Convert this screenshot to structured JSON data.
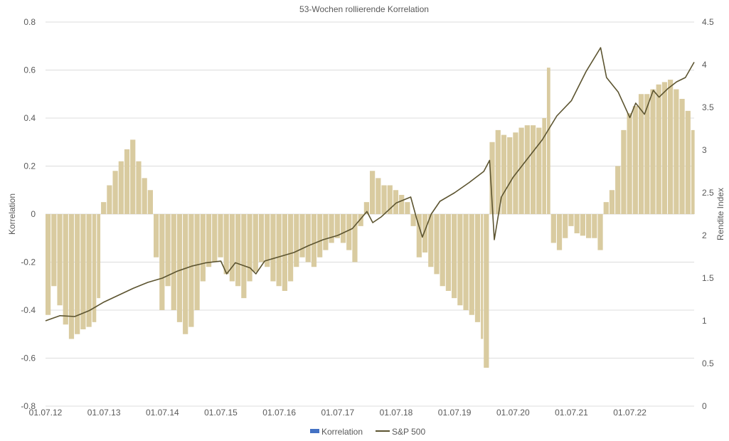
{
  "chart_data": {
    "type": "bar+line",
    "title": "53-Wochen rollierende Korrelation",
    "ylabel_left": "Korrelation",
    "ylabel_right": "Rendite Index",
    "ylim_left": [
      -0.8,
      0.8
    ],
    "yticks_left": [
      "0.8",
      "0.6",
      "0.4",
      "0.2",
      "0",
      "-0.2",
      "-0.4",
      "-0.6",
      "-0.8"
    ],
    "ylim_right": [
      0,
      4.5
    ],
    "yticks_right": [
      "4.5",
      "4",
      "3.5",
      "3",
      "2.5",
      "2",
      "1.5",
      "1",
      "0.5",
      "0"
    ],
    "x_tick_labels": [
      "01.07.12",
      "01.07.13",
      "01.07.14",
      "01.07.15",
      "01.07.16",
      "01.07.17",
      "01.07.18",
      "01.07.19",
      "01.07.20",
      "01.07.21",
      "01.07.22"
    ],
    "x_range_years": [
      2012.5,
      2023.6
    ],
    "grid": true,
    "legend_position": "bottom",
    "series": [
      {
        "name": "Korrelation",
        "kind": "bar",
        "legend_color": "#4472c4",
        "color": "#d9cba0",
        "points": [
          [
            2012.5,
            -0.42
          ],
          [
            2012.6,
            -0.3
          ],
          [
            2012.7,
            -0.38
          ],
          [
            2012.8,
            -0.46
          ],
          [
            2012.9,
            -0.52
          ],
          [
            2013.0,
            -0.5
          ],
          [
            2013.1,
            -0.48
          ],
          [
            2013.2,
            -0.47
          ],
          [
            2013.3,
            -0.45
          ],
          [
            2013.38,
            -0.35
          ],
          [
            2013.45,
            0.05
          ],
          [
            2013.55,
            0.12
          ],
          [
            2013.65,
            0.18
          ],
          [
            2013.75,
            0.22
          ],
          [
            2013.85,
            0.27
          ],
          [
            2013.95,
            0.31
          ],
          [
            2014.05,
            0.22
          ],
          [
            2014.15,
            0.15
          ],
          [
            2014.25,
            0.1
          ],
          [
            2014.35,
            -0.18
          ],
          [
            2014.45,
            -0.4
          ],
          [
            2014.55,
            -0.3
          ],
          [
            2014.65,
            -0.4
          ],
          [
            2014.75,
            -0.45
          ],
          [
            2014.85,
            -0.5
          ],
          [
            2014.95,
            -0.47
          ],
          [
            2015.05,
            -0.4
          ],
          [
            2015.15,
            -0.28
          ],
          [
            2015.25,
            -0.22
          ],
          [
            2015.35,
            -0.2
          ],
          [
            2015.45,
            -0.18
          ],
          [
            2015.55,
            -0.25
          ],
          [
            2015.65,
            -0.28
          ],
          [
            2015.75,
            -0.3
          ],
          [
            2015.85,
            -0.35
          ],
          [
            2015.95,
            -0.28
          ],
          [
            2016.05,
            -0.24
          ],
          [
            2016.15,
            -0.2
          ],
          [
            2016.25,
            -0.22
          ],
          [
            2016.35,
            -0.28
          ],
          [
            2016.45,
            -0.3
          ],
          [
            2016.55,
            -0.32
          ],
          [
            2016.65,
            -0.28
          ],
          [
            2016.75,
            -0.22
          ],
          [
            2016.85,
            -0.18
          ],
          [
            2016.95,
            -0.2
          ],
          [
            2017.05,
            -0.22
          ],
          [
            2017.15,
            -0.18
          ],
          [
            2017.25,
            -0.15
          ],
          [
            2017.35,
            -0.12
          ],
          [
            2017.45,
            -0.1
          ],
          [
            2017.55,
            -0.12
          ],
          [
            2017.65,
            -0.15
          ],
          [
            2017.75,
            -0.2
          ],
          [
            2017.85,
            -0.05
          ],
          [
            2017.95,
            0.05
          ],
          [
            2018.05,
            0.18
          ],
          [
            2018.15,
            0.15
          ],
          [
            2018.25,
            0.12
          ],
          [
            2018.35,
            0.12
          ],
          [
            2018.45,
            0.1
          ],
          [
            2018.55,
            0.08
          ],
          [
            2018.65,
            0.05
          ],
          [
            2018.75,
            -0.05
          ],
          [
            2018.85,
            -0.18
          ],
          [
            2018.95,
            -0.16
          ],
          [
            2019.05,
            -0.22
          ],
          [
            2019.15,
            -0.25
          ],
          [
            2019.25,
            -0.3
          ],
          [
            2019.35,
            -0.32
          ],
          [
            2019.45,
            -0.35
          ],
          [
            2019.55,
            -0.38
          ],
          [
            2019.65,
            -0.4
          ],
          [
            2019.75,
            -0.42
          ],
          [
            2019.85,
            -0.45
          ],
          [
            2019.95,
            -0.52
          ],
          [
            2020.0,
            -0.64
          ],
          [
            2020.1,
            0.3
          ],
          [
            2020.2,
            0.35
          ],
          [
            2020.3,
            0.33
          ],
          [
            2020.4,
            0.32
          ],
          [
            2020.5,
            0.34
          ],
          [
            2020.6,
            0.36
          ],
          [
            2020.7,
            0.37
          ],
          [
            2020.8,
            0.37
          ],
          [
            2020.9,
            0.36
          ],
          [
            2021.0,
            0.4
          ],
          [
            2021.08,
            0.61
          ],
          [
            2021.15,
            -0.12
          ],
          [
            2021.25,
            -0.15
          ],
          [
            2021.35,
            -0.1
          ],
          [
            2021.45,
            -0.05
          ],
          [
            2021.55,
            -0.08
          ],
          [
            2021.65,
            -0.09
          ],
          [
            2021.75,
            -0.1
          ],
          [
            2021.85,
            -0.1
          ],
          [
            2021.95,
            -0.15
          ],
          [
            2022.05,
            0.05
          ],
          [
            2022.15,
            0.1
          ],
          [
            2022.25,
            0.2
          ],
          [
            2022.35,
            0.35
          ],
          [
            2022.45,
            0.42
          ],
          [
            2022.55,
            0.45
          ],
          [
            2022.65,
            0.5
          ],
          [
            2022.75,
            0.5
          ],
          [
            2022.85,
            0.52
          ],
          [
            2022.95,
            0.54
          ],
          [
            2023.05,
            0.55
          ],
          [
            2023.15,
            0.56
          ],
          [
            2023.25,
            0.52
          ],
          [
            2023.35,
            0.48
          ],
          [
            2023.45,
            0.43
          ],
          [
            2023.55,
            0.35
          ]
        ]
      },
      {
        "name": "S&P 500",
        "kind": "line",
        "axis": "right",
        "color": "#5c5430",
        "points": [
          [
            2012.5,
            1.0
          ],
          [
            2012.75,
            1.06
          ],
          [
            2013.0,
            1.05
          ],
          [
            2013.25,
            1.12
          ],
          [
            2013.5,
            1.22
          ],
          [
            2013.75,
            1.3
          ],
          [
            2014.0,
            1.38
          ],
          [
            2014.25,
            1.45
          ],
          [
            2014.5,
            1.5
          ],
          [
            2014.75,
            1.58
          ],
          [
            2015.0,
            1.64
          ],
          [
            2015.25,
            1.68
          ],
          [
            2015.5,
            1.7
          ],
          [
            2015.6,
            1.55
          ],
          [
            2015.75,
            1.68
          ],
          [
            2016.0,
            1.62
          ],
          [
            2016.1,
            1.55
          ],
          [
            2016.25,
            1.7
          ],
          [
            2016.5,
            1.75
          ],
          [
            2016.75,
            1.8
          ],
          [
            2017.0,
            1.88
          ],
          [
            2017.25,
            1.95
          ],
          [
            2017.5,
            2.0
          ],
          [
            2017.75,
            2.08
          ],
          [
            2018.0,
            2.28
          ],
          [
            2018.1,
            2.15
          ],
          [
            2018.25,
            2.22
          ],
          [
            2018.5,
            2.38
          ],
          [
            2018.75,
            2.45
          ],
          [
            2018.85,
            2.2
          ],
          [
            2018.95,
            1.98
          ],
          [
            2019.1,
            2.25
          ],
          [
            2019.25,
            2.4
          ],
          [
            2019.5,
            2.5
          ],
          [
            2019.75,
            2.62
          ],
          [
            2020.0,
            2.75
          ],
          [
            2020.1,
            2.88
          ],
          [
            2020.18,
            1.95
          ],
          [
            2020.3,
            2.45
          ],
          [
            2020.5,
            2.68
          ],
          [
            2020.75,
            2.9
          ],
          [
            2021.0,
            3.12
          ],
          [
            2021.25,
            3.4
          ],
          [
            2021.5,
            3.58
          ],
          [
            2021.75,
            3.92
          ],
          [
            2022.0,
            4.2
          ],
          [
            2022.1,
            3.85
          ],
          [
            2022.3,
            3.68
          ],
          [
            2022.5,
            3.38
          ],
          [
            2022.6,
            3.55
          ],
          [
            2022.75,
            3.42
          ],
          [
            2022.9,
            3.7
          ],
          [
            2023.0,
            3.62
          ],
          [
            2023.15,
            3.72
          ],
          [
            2023.3,
            3.8
          ],
          [
            2023.45,
            3.85
          ],
          [
            2023.6,
            4.03
          ]
        ]
      }
    ]
  }
}
